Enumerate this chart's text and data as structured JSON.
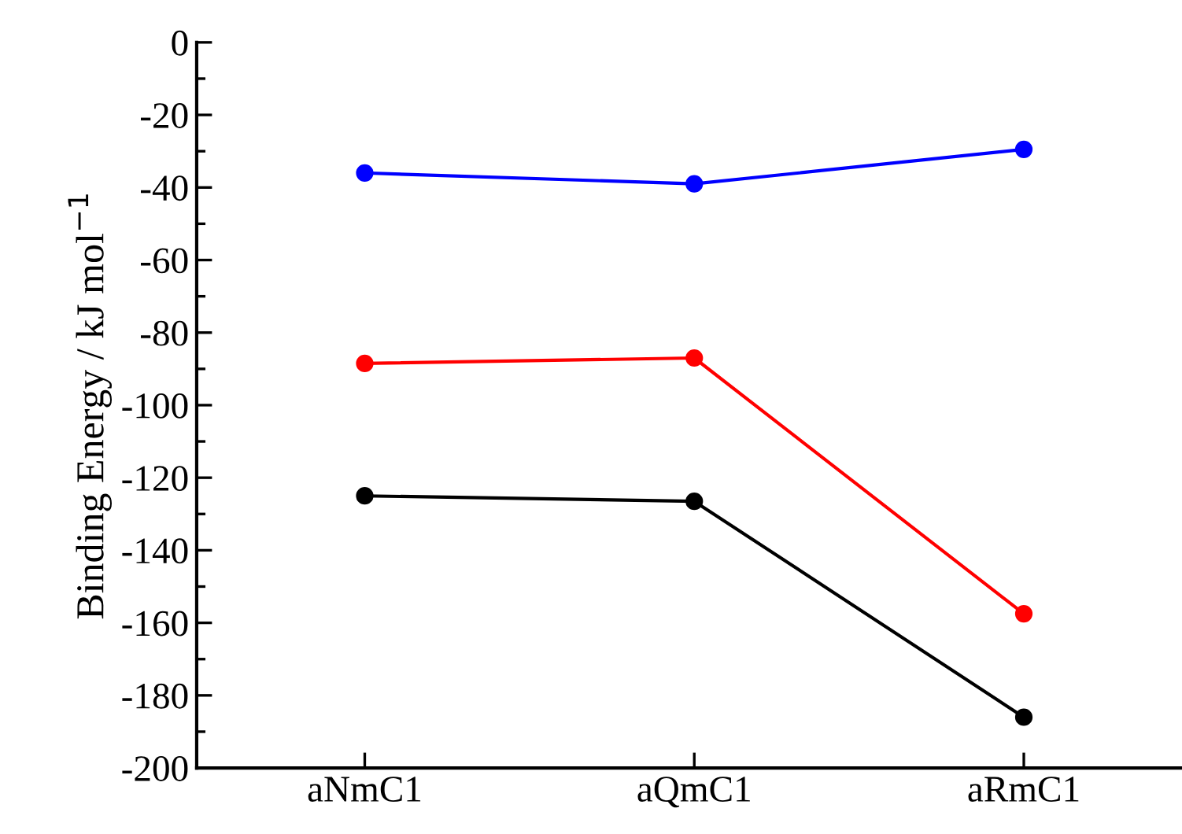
{
  "chart_data": {
    "type": "line",
    "ylabel": "Binding Energy / kJ mol$^{−1}$",
    "categories": [
      "aNmC1",
      "aQmC1",
      "aRmC1"
    ],
    "series": [
      {
        "color": "#0000ff",
        "values": [
          -36,
          -39,
          -29.5
        ]
      },
      {
        "color": "#ff0000",
        "values": [
          -88.5,
          -87,
          -157.5
        ]
      },
      {
        "color": "#000000",
        "values": [
          -125,
          -126.5,
          -186
        ]
      }
    ],
    "ylim": [
      -200,
      0
    ],
    "yticks": [
      -200,
      -180,
      -160,
      -140,
      -120,
      -100,
      -80,
      -60,
      -40,
      -20,
      0
    ],
    "marker": "circle",
    "line_style": "solid",
    "grid": false,
    "legend": false
  }
}
